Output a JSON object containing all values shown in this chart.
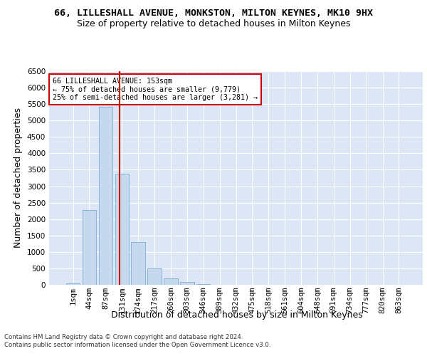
{
  "title": "66, LILLESHALL AVENUE, MONKSTON, MILTON KEYNES, MK10 9HX",
  "subtitle": "Size of property relative to detached houses in Milton Keynes",
  "xlabel": "Distribution of detached houses by size in Milton Keynes",
  "ylabel": "Number of detached properties",
  "footer_line1": "Contains HM Land Registry data © Crown copyright and database right 2024.",
  "footer_line2": "Contains public sector information licensed under the Open Government Licence v3.0.",
  "bar_labels": [
    "1sqm",
    "44sqm",
    "87sqm",
    "131sqm",
    "174sqm",
    "217sqm",
    "260sqm",
    "303sqm",
    "346sqm",
    "389sqm",
    "432sqm",
    "475sqm",
    "518sqm",
    "561sqm",
    "604sqm",
    "648sqm",
    "691sqm",
    "734sqm",
    "777sqm",
    "820sqm",
    "863sqm"
  ],
  "bar_values": [
    50,
    2280,
    5420,
    3380,
    1310,
    490,
    190,
    80,
    20,
    0,
    0,
    0,
    0,
    0,
    0,
    0,
    0,
    0,
    0,
    0,
    0
  ],
  "bar_color": "#c5d8ed",
  "bar_edge_color": "#7bafd4",
  "vline_x": 2.85,
  "vline_color": "#cc0000",
  "annotation_text": "66 LILLESHALL AVENUE: 153sqm\n← 75% of detached houses are smaller (9,779)\n25% of semi-detached houses are larger (3,281) →",
  "annotation_box_color": "#ffffff",
  "annotation_box_edge": "#cc0000",
  "ylim": [
    0,
    6500
  ],
  "yticks": [
    0,
    500,
    1000,
    1500,
    2000,
    2500,
    3000,
    3500,
    4000,
    4500,
    5000,
    5500,
    6000,
    6500
  ],
  "bg_color": "#dce6f5",
  "plot_bg_color": "#dce6f5",
  "grid_color": "#ffffff",
  "title_fontsize": 9.5,
  "subtitle_fontsize": 9,
  "axis_label_fontsize": 9,
  "tick_fontsize": 7.5,
  "footer_fontsize": 6.2
}
